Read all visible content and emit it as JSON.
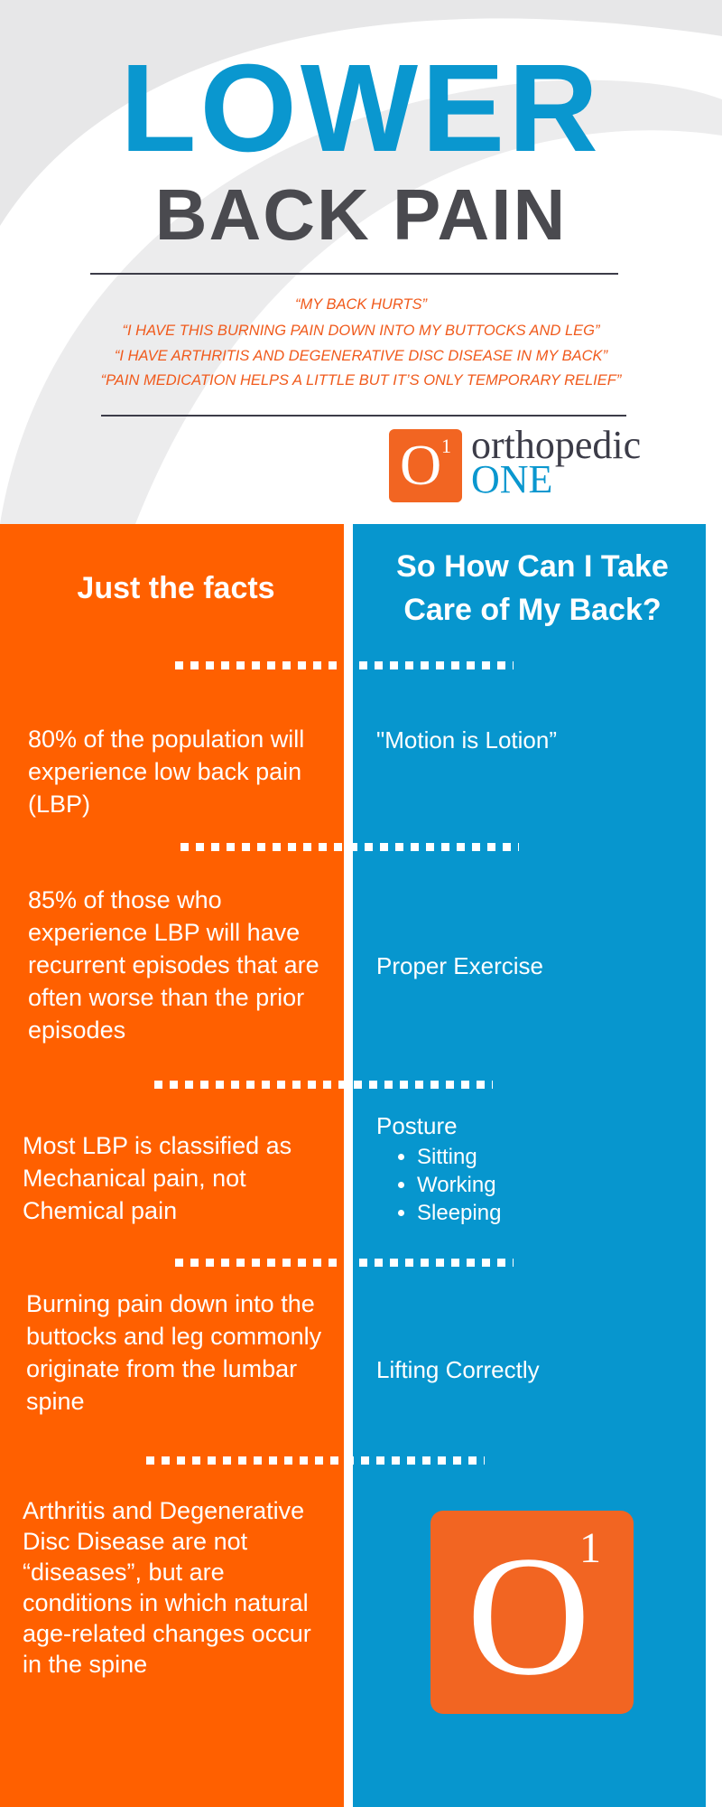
{
  "header": {
    "title_line1": "LOWER",
    "title_line2": "BACK PAIN",
    "quotes": [
      "“MY BACK HURTS”",
      "“I HAVE THIS BURNING PAIN DOWN INTO MY BUTTOCKS AND LEG”",
      "“I HAVE ARTHRITIS AND DEGENERATIVE DISC DISEASE IN MY BACK”",
      "“PAIN MEDICATION HELPS A LITTLE BUT IT’S ONLY TEMPORARY RELIEF”"
    ],
    "logo": {
      "mark": "O",
      "superscript": "1",
      "word1": "orthopedic",
      "word2": "ONE"
    }
  },
  "facts": {
    "heading": "Just the facts",
    "items": [
      "80% of the population will experience low back pain (LBP)",
      "85% of those who experience LBP will have recurrent episodes that are often worse than the prior episodes",
      "Most LBP is classified as Mechanical pain, not Chemical pain",
      "Burning pain down into the buttocks and leg commonly originate from the lumbar spine",
      "Arthritis and Degenerative Disc Disease are not “diseases”, but are conditions in which natural age-related changes occur in the spine"
    ]
  },
  "care": {
    "heading": "So How Can I Take Care of My Back?",
    "items": [
      {
        "text": "\"Motion is Lotion”"
      },
      {
        "text": "Proper Exercise"
      },
      {
        "text": "Posture",
        "bullets": [
          "Sitting",
          "Working",
          "Sleeping"
        ]
      },
      {
        "text": "Lifting Correctly"
      }
    ],
    "logo": {
      "mark": "O",
      "superscript": "1"
    }
  }
}
